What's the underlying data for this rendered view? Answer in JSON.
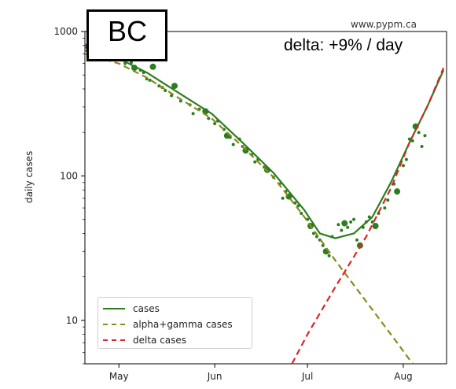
{
  "region_label": "BC",
  "source_label": "www.pypm.ca",
  "annotation": "delta: +9% / day",
  "chart_data": {
    "type": "line",
    "ylabel": "daily cases",
    "yscale": "log",
    "ylim": [
      5,
      1000
    ],
    "xlim": [
      "2021-04-20",
      "2021-08-15"
    ],
    "x_tick_labels": [
      "May",
      "Jun",
      "Jul",
      "Aug"
    ],
    "x_tick_dates": [
      "2021-05-01",
      "2021-06-01",
      "2021-07-01",
      "2021-08-01"
    ],
    "y_tick_labels": [
      "10",
      "100",
      "1000"
    ],
    "y_tick_values": [
      10,
      100,
      1000
    ],
    "legend_position": "lower-left",
    "colors": {
      "cases": "#2d7d1e",
      "alpha_gamma": "#8b8a1e",
      "delta": "#d62728",
      "points": "#2d7d1e"
    },
    "series": [
      {
        "name": "cases",
        "style": "solid",
        "points": [
          [
            "2021-04-20",
            740
          ],
          [
            "2021-05-01",
            650
          ],
          [
            "2021-05-10",
            520
          ],
          [
            "2021-05-20",
            380
          ],
          [
            "2021-05-31",
            270
          ],
          [
            "2021-06-10",
            170
          ],
          [
            "2021-06-20",
            105
          ],
          [
            "2021-06-30",
            58
          ],
          [
            "2021-07-05",
            40
          ],
          [
            "2021-07-10",
            37
          ],
          [
            "2021-07-16",
            40
          ],
          [
            "2021-07-22",
            52
          ],
          [
            "2021-07-28",
            90
          ],
          [
            "2021-08-03",
            170
          ],
          [
            "2021-08-09",
            310
          ],
          [
            "2021-08-14",
            540
          ]
        ]
      },
      {
        "name": "alpha+gamma cases",
        "style": "dashed",
        "points": [
          [
            "2021-04-20",
            700
          ],
          [
            "2021-05-01",
            600
          ],
          [
            "2021-05-10",
            480
          ],
          [
            "2021-05-20",
            350
          ],
          [
            "2021-05-31",
            250
          ],
          [
            "2021-06-10",
            160
          ],
          [
            "2021-06-20",
            98
          ],
          [
            "2021-06-30",
            52
          ],
          [
            "2021-07-10",
            26
          ],
          [
            "2021-07-20",
            13.5
          ],
          [
            "2021-07-30",
            7
          ],
          [
            "2021-08-04",
            5
          ]
        ]
      },
      {
        "name": "delta cases",
        "style": "dashed",
        "points": [
          [
            "2021-06-26",
            5
          ],
          [
            "2021-07-01",
            8
          ],
          [
            "2021-07-10",
            17
          ],
          [
            "2021-07-20",
            38
          ],
          [
            "2021-07-28",
            82
          ],
          [
            "2021-08-03",
            170
          ],
          [
            "2021-08-09",
            310
          ],
          [
            "2021-08-14",
            560
          ]
        ]
      }
    ],
    "observed_cases": [
      [
        "2021-04-21",
        790
      ],
      [
        "2021-04-23",
        700
      ],
      [
        "2021-04-24",
        880
      ],
      [
        "2021-04-26",
        760
      ],
      [
        "2021-04-28",
        720
      ],
      [
        "2021-04-30",
        690
      ],
      [
        "2021-05-02",
        650
      ],
      [
        "2021-05-03",
        600
      ],
      [
        "2021-05-04",
        740
      ],
      [
        "2021-05-05",
        610
      ],
      [
        "2021-05-06",
        560
      ],
      [
        "2021-05-08",
        540
      ],
      [
        "2021-05-09",
        520
      ],
      [
        "2021-05-10",
        470
      ],
      [
        "2021-05-11",
        460
      ],
      [
        "2021-05-12",
        570
      ],
      [
        "2021-05-14",
        420
      ],
      [
        "2021-05-15",
        410
      ],
      [
        "2021-05-16",
        390
      ],
      [
        "2021-05-18",
        360
      ],
      [
        "2021-05-19",
        420
      ],
      [
        "2021-05-21",
        330
      ],
      [
        "2021-05-24",
        310
      ],
      [
        "2021-05-25",
        270
      ],
      [
        "2021-05-27",
        290
      ],
      [
        "2021-05-29",
        280
      ],
      [
        "2021-05-30",
        250
      ],
      [
        "2021-06-01",
        230
      ],
      [
        "2021-06-02",
        240
      ],
      [
        "2021-06-04",
        210
      ],
      [
        "2021-06-05",
        190
      ],
      [
        "2021-06-06",
        185
      ],
      [
        "2021-06-07",
        165
      ],
      [
        "2021-06-09",
        180
      ],
      [
        "2021-06-10",
        160
      ],
      [
        "2021-06-11",
        150
      ],
      [
        "2021-06-13",
        140
      ],
      [
        "2021-06-14",
        125
      ],
      [
        "2021-06-15",
        130
      ],
      [
        "2021-06-17",
        115
      ],
      [
        "2021-06-18",
        110
      ],
      [
        "2021-06-20",
        98
      ],
      [
        "2021-06-22",
        88
      ],
      [
        "2021-06-23",
        70
      ],
      [
        "2021-06-24",
        78
      ],
      [
        "2021-06-25",
        72
      ],
      [
        "2021-06-27",
        65
      ],
      [
        "2021-06-28",
        62
      ],
      [
        "2021-06-29",
        55
      ],
      [
        "2021-07-01",
        50
      ],
      [
        "2021-07-02",
        45
      ],
      [
        "2021-07-03",
        40
      ],
      [
        "2021-07-04",
        38
      ],
      [
        "2021-07-05",
        36
      ],
      [
        "2021-07-06",
        33
      ],
      [
        "2021-07-07",
        30
      ],
      [
        "2021-07-08",
        28
      ],
      [
        "2021-07-09",
        38
      ],
      [
        "2021-07-11",
        46
      ],
      [
        "2021-07-12",
        42
      ],
      [
        "2021-07-13",
        47
      ],
      [
        "2021-07-14",
        44
      ],
      [
        "2021-07-15",
        48
      ],
      [
        "2021-07-16",
        50
      ],
      [
        "2021-07-17",
        36
      ],
      [
        "2021-07-18",
        33
      ],
      [
        "2021-07-19",
        44
      ],
      [
        "2021-07-20",
        48
      ],
      [
        "2021-07-21",
        52
      ],
      [
        "2021-07-22",
        48
      ],
      [
        "2021-07-23",
        45
      ],
      [
        "2021-07-24",
        55
      ],
      [
        "2021-07-26",
        60
      ],
      [
        "2021-07-27",
        68
      ],
      [
        "2021-07-29",
        88
      ],
      [
        "2021-07-30",
        78
      ],
      [
        "2021-08-01",
        118
      ],
      [
        "2021-08-02",
        130
      ],
      [
        "2021-08-03",
        180
      ],
      [
        "2021-08-04",
        175
      ],
      [
        "2021-08-05",
        220
      ],
      [
        "2021-08-06",
        200
      ],
      [
        "2021-08-07",
        160
      ],
      [
        "2021-08-08",
        190
      ]
    ]
  }
}
